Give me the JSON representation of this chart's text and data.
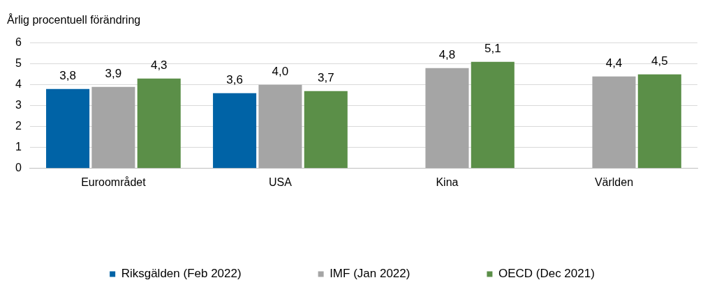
{
  "chart_data": {
    "type": "bar",
    "ylabel": "Årlig procentuell förändring",
    "categories": [
      "Euroområdet",
      "USA",
      "Kina",
      "Världen"
    ],
    "series": [
      {
        "name": "Riksgälden (Feb 2022)",
        "color": "#0063a6",
        "values": [
          3.8,
          3.6,
          null,
          null
        ],
        "value_labels": [
          "3,8",
          "3,6",
          null,
          null
        ]
      },
      {
        "name": "IMF (Jan 2022)",
        "color": "#a5a5a5",
        "values": [
          3.9,
          4.0,
          4.8,
          4.4
        ],
        "value_labels": [
          "3,9",
          "4,0",
          "4,8",
          "4,4"
        ]
      },
      {
        "name": "OECD (Dec 2021)",
        "color": "#5b8f48",
        "values": [
          4.3,
          3.7,
          5.1,
          4.5
        ],
        "value_labels": [
          "4,3",
          "3,7",
          "5,1",
          "4,5"
        ]
      }
    ],
    "ylim": [
      0,
      6
    ],
    "yticks": [
      0,
      1,
      2,
      3,
      4,
      5,
      6
    ],
    "grid": "y",
    "legend": "bottom"
  }
}
